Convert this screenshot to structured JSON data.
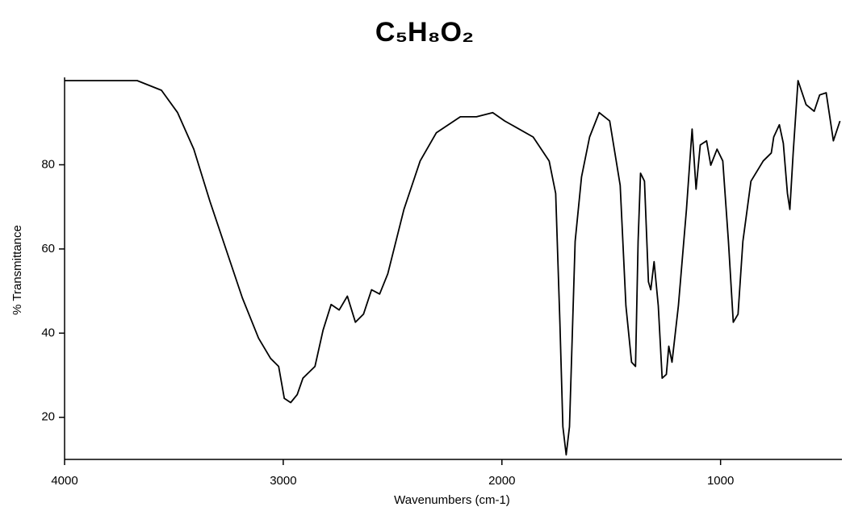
{
  "chart_data": {
    "type": "line",
    "title": "C₅H₈O₂",
    "x_label": "Wavenumbers (cm-1)",
    "y_label": "% Transmittance",
    "color": "#000000",
    "xlim": [
      4000,
      445
    ],
    "ylim": [
      10,
      100
    ],
    "xticks": [
      4000,
      3000,
      2000,
      1000
    ],
    "yticks": [
      20,
      40,
      60,
      80
    ],
    "x": [
      4000,
      3668,
      3557,
      3483,
      3409,
      3335,
      3261,
      3187,
      3113,
      3058,
      3021,
      2995,
      2966,
      2936,
      2910,
      2855,
      2818,
      2781,
      2744,
      2707,
      2670,
      2633,
      2596,
      2559,
      2522,
      2448,
      2374,
      2300,
      2190,
      2116,
      2042,
      1987,
      1857,
      1784,
      1754,
      1735,
      1721,
      1706,
      1691,
      1665,
      1636,
      1599,
      1555,
      1507,
      1459,
      1433,
      1407,
      1389,
      1377,
      1366,
      1348,
      1330,
      1319,
      1304,
      1285,
      1267,
      1248,
      1237,
      1222,
      1193,
      1156,
      1130,
      1112,
      1093,
      1064,
      1045,
      1016,
      990,
      964,
      942,
      920,
      898,
      861,
      805,
      768,
      757,
      731,
      713,
      694,
      683,
      668,
      646,
      609,
      572,
      547,
      517,
      484,
      454
    ],
    "values": [
      100,
      100,
      97.7,
      92.4,
      83.7,
      71.3,
      59.8,
      48.4,
      38.8,
      34.0,
      32.1,
      24.5,
      23.5,
      25.4,
      29.3,
      32.1,
      40.7,
      46.8,
      45.5,
      48.8,
      42.6,
      44.5,
      50.3,
      49.3,
      54.1,
      69.4,
      80.9,
      87.6,
      91.4,
      91.4,
      92.4,
      90.4,
      86.6,
      80.9,
      73.2,
      42.6,
      17.8,
      11.1,
      17.8,
      61.8,
      77.1,
      86.6,
      92.4,
      90.4,
      75.1,
      46.5,
      33.1,
      32.1,
      61.8,
      78.0,
      76.1,
      52.2,
      50.3,
      57.0,
      46.5,
      29.3,
      30.2,
      36.9,
      33.1,
      46.5,
      69.4,
      88.5,
      74.2,
      84.7,
      85.7,
      79.9,
      83.7,
      80.9,
      61.8,
      42.6,
      44.5,
      61.8,
      76.1,
      80.9,
      82.8,
      86.6,
      89.5,
      85.1,
      73.2,
      69.4,
      82.8,
      100,
      94.3,
      92.7,
      96.6,
      97.1,
      85.7,
      90.4
    ]
  }
}
